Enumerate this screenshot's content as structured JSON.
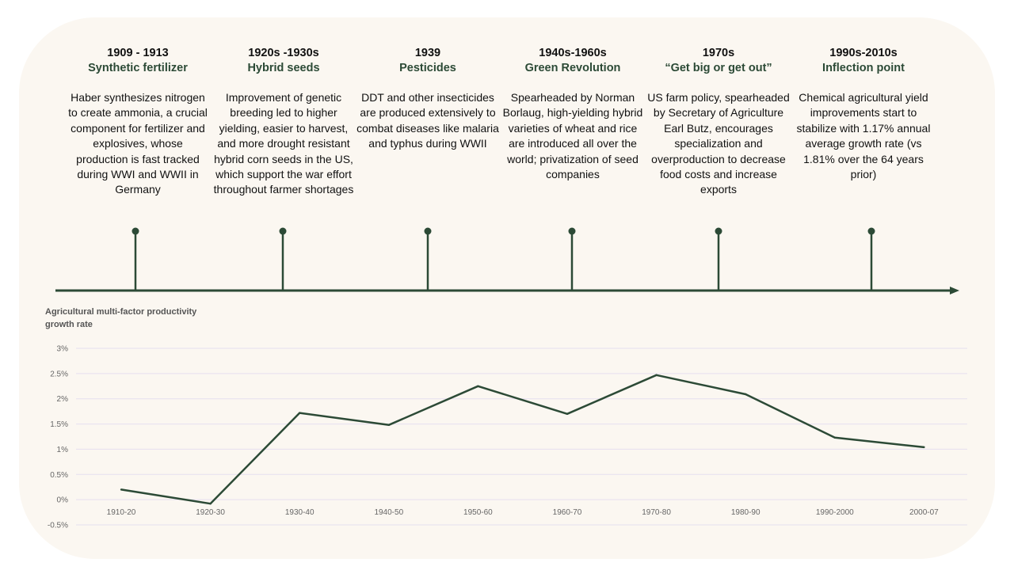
{
  "events": [
    {
      "year": "1909 - 1913",
      "title": "Synthetic fertilizer",
      "desc": "Haber synthesizes nitrogen to create ammonia, a crucial component for fertilizer and explosives, whose production is fast tracked during WWI and WWII in Germany"
    },
    {
      "year": "1920s -1930s",
      "title": "Hybrid seeds",
      "desc": "Improvement of genetic breeding led to higher yielding, easier to harvest, and more drought resistant hybrid corn seeds in the US, which support the war effort throughout farmer shortages"
    },
    {
      "year": "1939",
      "title": "Pesticides",
      "desc": "DDT and other insecticides are produced extensively to combat diseases like malaria and typhus during WWII"
    },
    {
      "year": "1940s-1960s",
      "title": "Green Revolution",
      "desc": "Spearheaded by Norman Borlaug, high-yielding hybrid varieties of wheat and rice are introduced all over the world; privatization of seed companies"
    },
    {
      "year": "1970s",
      "title": "“Get big or get out”",
      "desc": "US farm policy, spearheaded by Secretary of Agriculture Earl Butz, encourages specialization and overproduction to decrease food costs and increase exports"
    },
    {
      "year": "1990s-2010s",
      "title": "Inflection point",
      "desc": "Chemical agricultural yield improvements start to stabilize with 1.17% annual average growth rate (vs 1.81% over the 64 years prior)"
    }
  ],
  "colors": {
    "accent": "#2c4a36",
    "grid": "#e6dff0",
    "background": "#fbf7f1"
  },
  "chart_data": {
    "type": "line",
    "title": "Agricultural multi-factor productivity growth rate",
    "categories": [
      "1910-20",
      "1920-30",
      "1930-40",
      "1940-50",
      "1950-60",
      "1960-70",
      "1970-80",
      "1980-90",
      "1990-2000",
      "2000-07"
    ],
    "series": [
      {
        "name": "Agricultural multi-factor productivity growth rate",
        "values": [
          0.2,
          -0.08,
          1.72,
          1.48,
          2.25,
          1.7,
          2.47,
          2.09,
          1.23,
          1.04
        ]
      }
    ],
    "y_ticks": [
      "3%",
      "2.5%",
      "2%",
      "1.5%",
      "1%",
      "0.5%",
      "0%",
      "-0.5%"
    ],
    "ylim": [
      -0.5,
      3
    ],
    "xlabel": "",
    "ylabel": "",
    "grid": true
  }
}
